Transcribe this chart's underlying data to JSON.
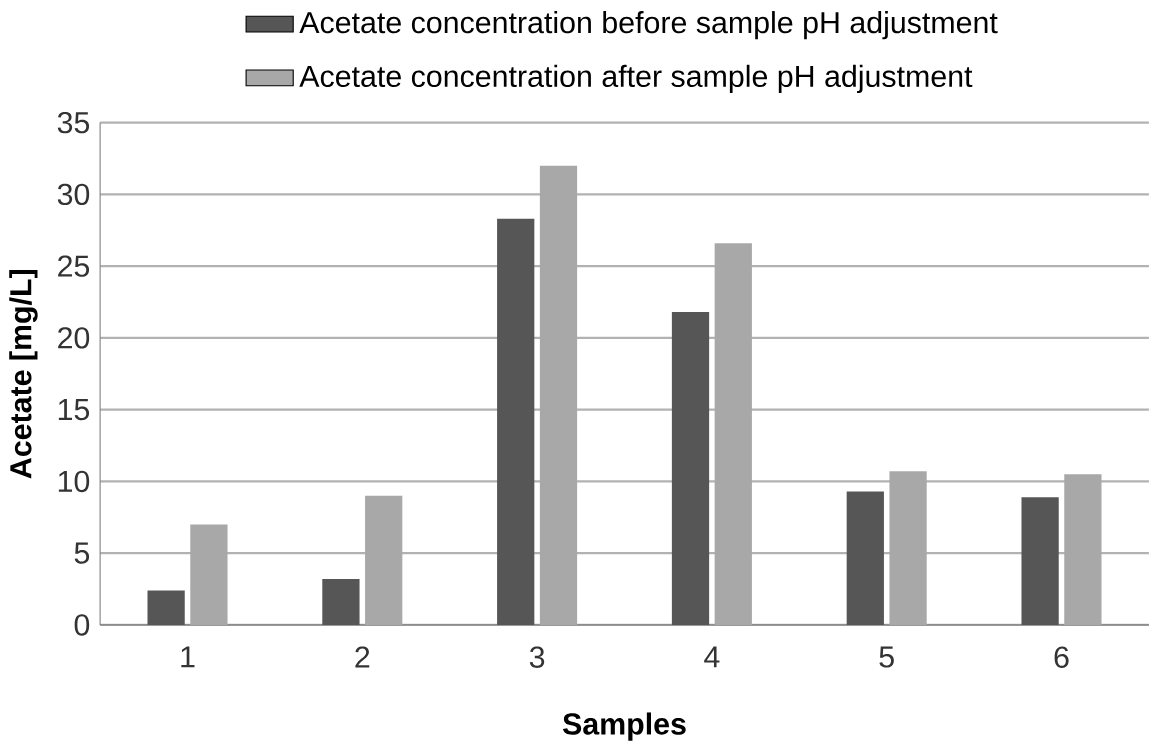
{
  "chart_data": {
    "type": "bar",
    "xlabel": "Samples",
    "ylabel": "Acetate [mg/L]",
    "categories": [
      "1",
      "2",
      "3",
      "4",
      "5",
      "6"
    ],
    "series": [
      {
        "name": "Acetate concentration before sample pH adjustment",
        "color": "#565656",
        "values": [
          2.4,
          3.2,
          28.3,
          21.8,
          9.3,
          8.9
        ]
      },
      {
        "name": "Acetate concentration after sample pH adjustment",
        "color": "#a8a8a8",
        "values": [
          7.0,
          9.0,
          32.0,
          26.6,
          10.7,
          10.5
        ]
      }
    ],
    "ylim": [
      0,
      35
    ],
    "yticks": [
      0,
      5,
      10,
      15,
      20,
      25,
      30,
      35
    ],
    "grid": "y",
    "legend": "top"
  }
}
